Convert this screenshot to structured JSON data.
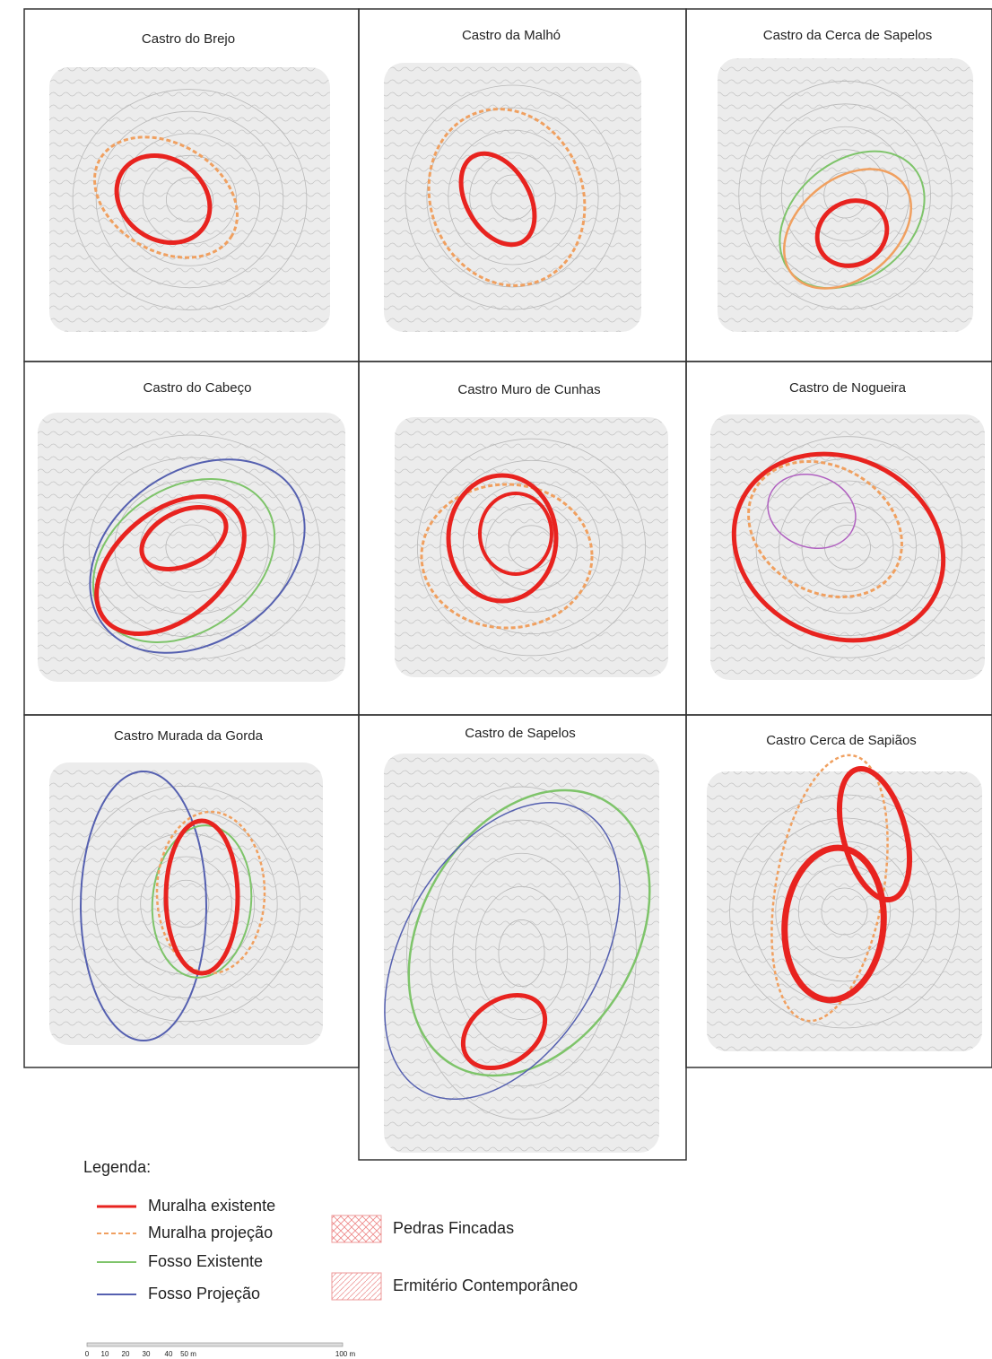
{
  "panels": [
    {
      "title": "Castro do Brejo"
    },
    {
      "title": "Castro da Malhó"
    },
    {
      "title": "Castro da Cerca de Sapelos"
    },
    {
      "title": "Castro do Cabeço"
    },
    {
      "title": "Castro Muro de Cunhas"
    },
    {
      "title": "Castro de Nogueira"
    },
    {
      "title": "Castro Murada da Gorda"
    },
    {
      "title": "Castro de Sapelos"
    },
    {
      "title": "Castro Cerca de Sapiãos"
    }
  ],
  "legend": {
    "title": "Legenda:",
    "lines": [
      {
        "label": "Muralha existente"
      },
      {
        "label": "Muralha projeção"
      },
      {
        "label": "Fosso Existente"
      },
      {
        "label": "Fosso Projeção"
      }
    ],
    "areas": [
      {
        "label": "Pedras Fincadas"
      },
      {
        "label": "Ermitério Contemporâneo"
      }
    ]
  },
  "scale": {
    "labels": [
      "0",
      "10",
      "20",
      "30",
      "40",
      "50 m",
      "100 m"
    ]
  }
}
